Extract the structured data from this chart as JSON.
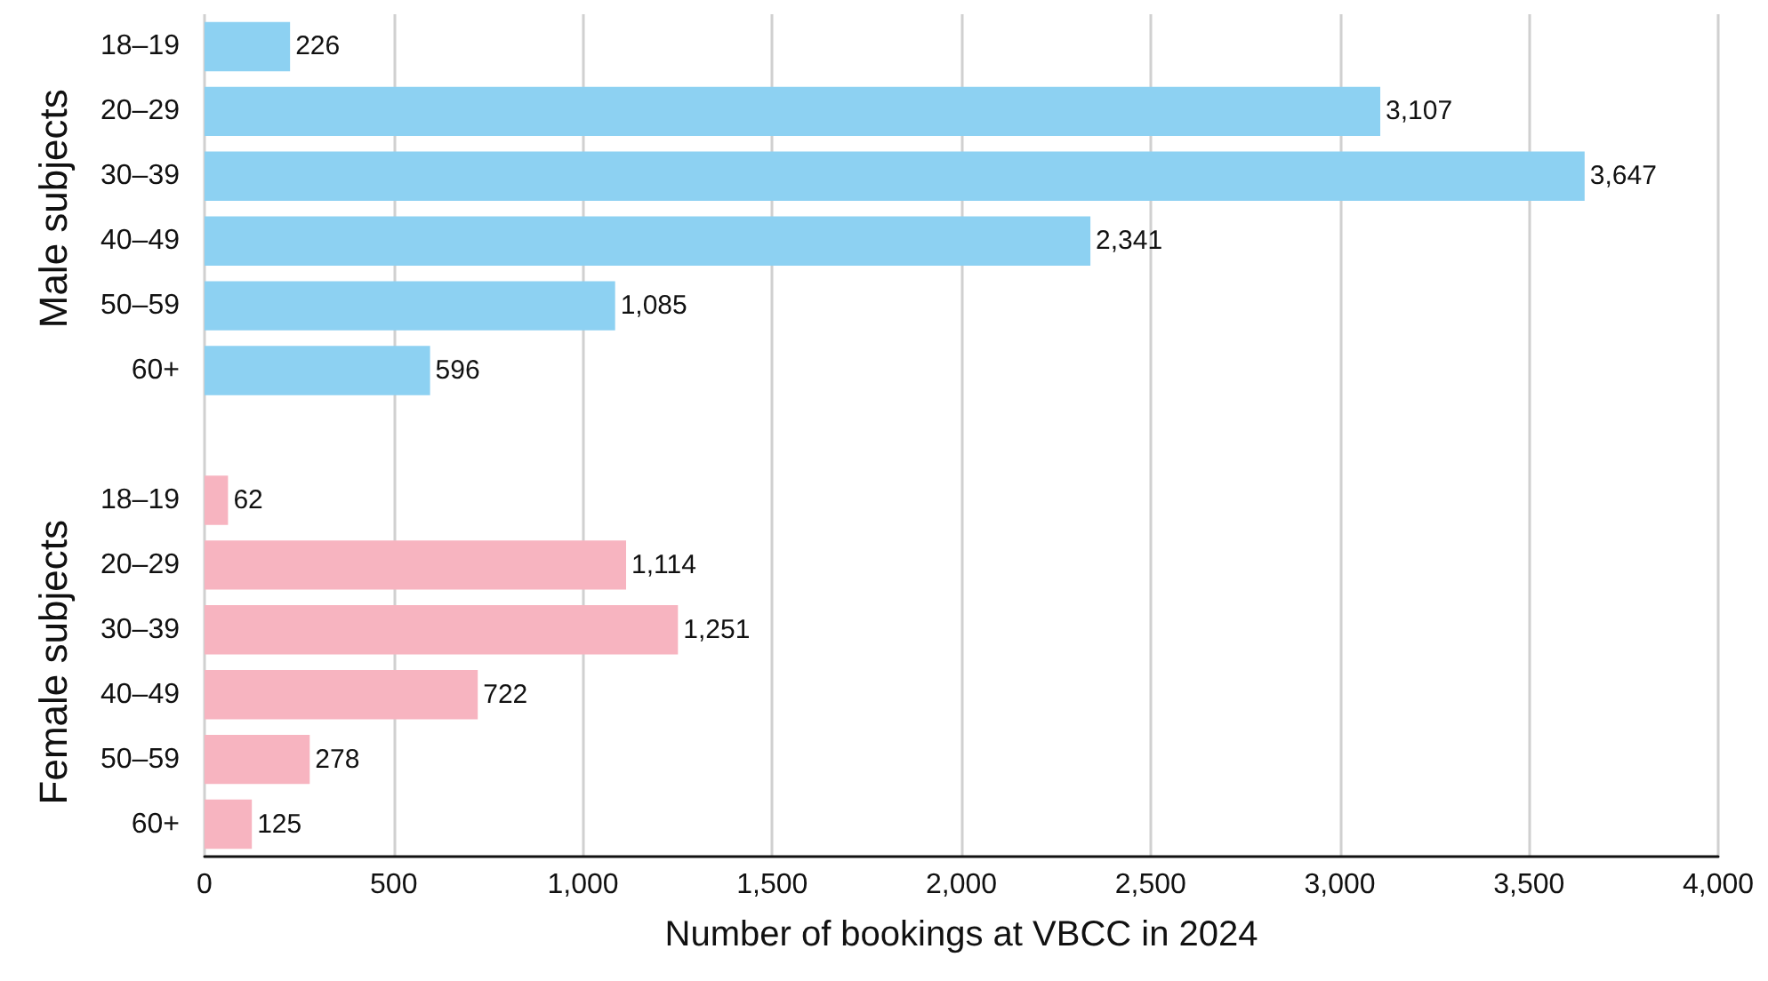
{
  "chart_data": {
    "type": "bar",
    "orientation": "horizontal",
    "xlabel": "Number of bookings at VBCC in 2024",
    "categories": [
      "18–19",
      "20–29",
      "30–39",
      "40–49",
      "50–59",
      "60+",
      null,
      "18–19",
      "20–29",
      "30–39",
      "40–49",
      "50–59",
      "60+"
    ],
    "series": [
      {
        "color": "#8dd1f2",
        "values": [
          226,
          3107,
          3647,
          2341,
          1085,
          596,
          null,
          null,
          null,
          null,
          null,
          null,
          null
        ],
        "value_labels": [
          "226",
          "3,107",
          "3,647",
          "2,341",
          "1,085",
          "596",
          null,
          null,
          null,
          null,
          null,
          null,
          null
        ]
      },
      {
        "color": "#f7b4c0",
        "values": [
          null,
          null,
          null,
          null,
          null,
          null,
          null,
          62,
          1114,
          1251,
          722,
          278,
          125
        ],
        "value_labels": [
          null,
          null,
          null,
          null,
          null,
          null,
          null,
          "62",
          "1,114",
          "1,251",
          "722",
          "278",
          "125"
        ]
      }
    ],
    "xlim": [
      0,
      4000
    ],
    "xticks": [
      0,
      500,
      {
        "value": 1000,
        "label": "1,000"
      },
      {
        "value": 1500,
        "label": "1,500"
      },
      {
        "value": 2000,
        "label": "2,000"
      },
      {
        "value": 2500,
        "label": "2,500"
      },
      {
        "value": 3000,
        "label": "3,000"
      },
      {
        "value": 3500,
        "label": "3,500"
      },
      {
        "value": 4000,
        "label": "4,000"
      }
    ],
    "grid": "x",
    "annotations": [
      "Male subjects",
      "Female subjects"
    ]
  }
}
